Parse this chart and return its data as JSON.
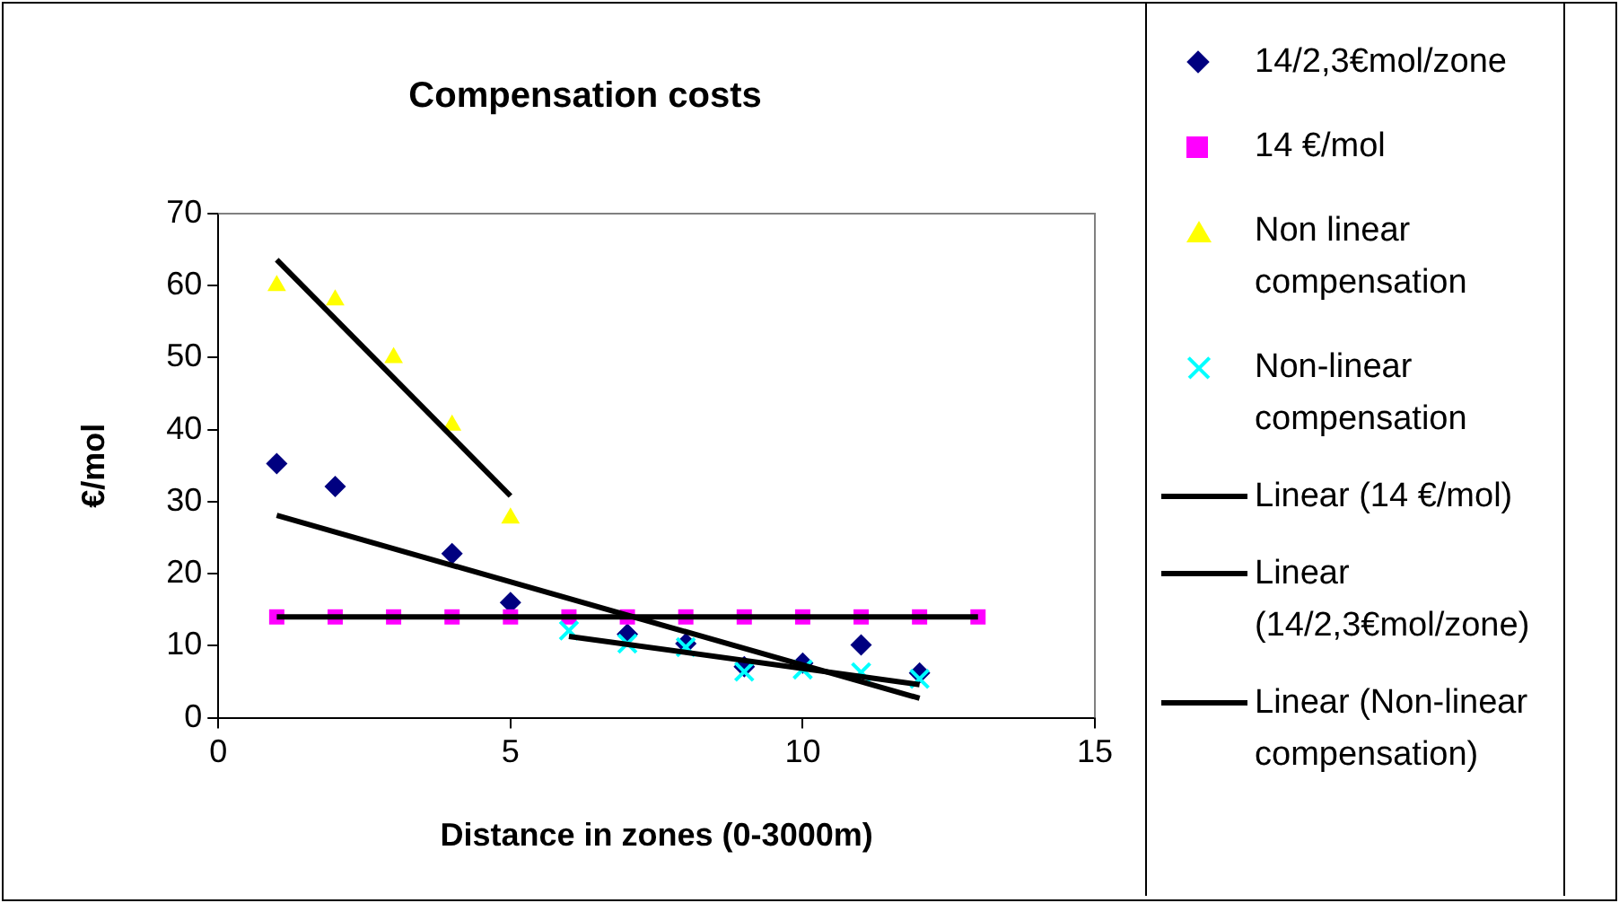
{
  "chart_data": {
    "type": "scatter",
    "title": "Compensation costs",
    "xlabel": "Distance in zones (0-3000m)",
    "ylabel": "€/mol",
    "xlim": [
      0,
      15
    ],
    "xticks": [
      0,
      5,
      10,
      15
    ],
    "ylim": [
      0,
      70
    ],
    "yticks": [
      0,
      10,
      20,
      30,
      40,
      50,
      60,
      70
    ],
    "grid": false,
    "legend": "right",
    "series": [
      {
        "name": "14/2,3€mol/zone",
        "type": "scatter",
        "marker": "diamond",
        "color": "#000080",
        "x": [
          1,
          2,
          4,
          5,
          7,
          8,
          9,
          10,
          11,
          12
        ],
        "values": [
          35.3,
          32.1,
          22.8,
          16,
          11.6,
          10.3,
          7.1,
          7.6,
          10.1,
          6.2
        ]
      },
      {
        "name": "14 €/mol",
        "type": "scatter",
        "marker": "square",
        "color": "#ff00ff",
        "x": [
          1,
          2,
          3,
          4,
          5,
          6,
          7,
          8,
          9,
          10,
          11,
          12,
          13
        ],
        "values": [
          14,
          14,
          14,
          14,
          14,
          14,
          14,
          14,
          14,
          14,
          14,
          14,
          14
        ]
      },
      {
        "name": "Non linear compensation",
        "type": "scatter",
        "marker": "triangle",
        "color": "#ffff00",
        "x": [
          1,
          2,
          3,
          4,
          5
        ],
        "values": [
          60,
          58,
          50,
          40.6,
          27.7
        ]
      },
      {
        "name": "Non-linear compensation",
        "type": "scatter",
        "marker": "cross",
        "color": "#00ffff",
        "x": [
          6,
          7,
          8,
          9,
          10,
          11,
          12
        ],
        "values": [
          12.1,
          10.3,
          9.8,
          6.4,
          6.7,
          6.3,
          5.4
        ]
      },
      {
        "name": "Linear (14 €/mol)",
        "type": "line",
        "marker": "none",
        "color": "#000000",
        "x": [
          1,
          13
        ],
        "values": [
          14,
          14
        ]
      },
      {
        "name": "Linear (14/2,3€mol/zone)",
        "type": "line",
        "marker": "none",
        "color": "#000000",
        "x": [
          1,
          12
        ],
        "values": [
          28.1,
          2.7
        ]
      },
      {
        "name": "Linear (Non-linear compensation)",
        "type": "line",
        "marker": "none",
        "color": "#000000",
        "x": [
          6,
          12
        ],
        "values": [
          11.3,
          4.6
        ]
      },
      {
        "type": "line",
        "marker": "none",
        "color": "#000000",
        "x": [
          1,
          5
        ],
        "values": [
          63.6,
          30.8
        ]
      }
    ]
  }
}
